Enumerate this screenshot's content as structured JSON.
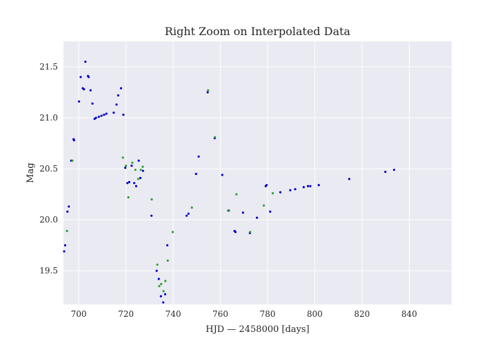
{
  "chart_data": {
    "type": "scatter",
    "title": "Right Zoom on Interpolated Data",
    "xlabel": "HJD — 2458000 [days]",
    "ylabel": "Mag",
    "xlim": [
      693.5,
      858
    ],
    "ylim": [
      19.17,
      21.75
    ],
    "y_inverted": false,
    "grid": true,
    "background": "#eaeaf2",
    "xticks": [
      700,
      720,
      740,
      760,
      780,
      800,
      820,
      840
    ],
    "yticks": [
      19.5,
      20.0,
      20.5,
      21.0,
      21.5
    ],
    "xtick_labels": [
      "700",
      "720",
      "740",
      "760",
      "780",
      "800",
      "820",
      "840"
    ],
    "ytick_labels": [
      "19.5",
      "20.0",
      "20.5",
      "21.0",
      "21.5"
    ],
    "series": [
      {
        "color": "#0000cc",
        "points": [
          [
            693.8,
            19.69
          ],
          [
            694.2,
            19.75
          ],
          [
            695.2,
            20.08
          ],
          [
            695.8,
            20.13
          ],
          [
            696.8,
            20.58
          ],
          [
            697.8,
            20.79
          ],
          [
            698.0,
            20.78
          ],
          [
            700.1,
            21.16
          ],
          [
            700.8,
            21.4
          ],
          [
            701.7,
            21.29
          ],
          [
            702.2,
            21.28
          ],
          [
            702.8,
            21.55
          ],
          [
            703.9,
            21.41
          ],
          [
            704.2,
            21.4
          ],
          [
            705.0,
            21.27
          ],
          [
            705.8,
            21.14
          ],
          [
            706.7,
            20.99
          ],
          [
            707.3,
            21.0
          ],
          [
            708.5,
            21.01
          ],
          [
            709.6,
            21.02
          ],
          [
            710.7,
            21.03
          ],
          [
            711.7,
            21.04
          ],
          [
            714.8,
            21.05
          ],
          [
            716.0,
            21.13
          ],
          [
            716.7,
            21.22
          ],
          [
            717.9,
            21.29
          ],
          [
            718.9,
            21.03
          ],
          [
            719.7,
            20.51
          ],
          [
            720.6,
            20.36
          ],
          [
            721.4,
            20.37
          ],
          [
            722.4,
            20.53
          ],
          [
            723.5,
            20.36
          ],
          [
            724.3,
            20.33
          ],
          [
            725.4,
            20.58
          ],
          [
            726.1,
            20.41
          ],
          [
            727.2,
            20.48
          ],
          [
            730.8,
            20.04
          ],
          [
            733.0,
            19.5
          ],
          [
            733.9,
            19.42
          ],
          [
            734.8,
            19.25
          ],
          [
            735.8,
            19.19
          ],
          [
            736.6,
            19.27
          ],
          [
            737.5,
            19.75
          ],
          [
            745.7,
            20.04
          ],
          [
            746.5,
            20.06
          ],
          [
            749.7,
            20.45
          ],
          [
            750.8,
            20.62
          ],
          [
            754.6,
            21.25
          ],
          [
            757.6,
            20.8
          ],
          [
            760.8,
            20.44
          ],
          [
            763.4,
            20.09
          ],
          [
            766.0,
            19.89
          ],
          [
            766.4,
            19.88
          ],
          [
            769.6,
            20.07
          ],
          [
            772.5,
            19.87
          ],
          [
            775.5,
            20.02
          ],
          [
            779.2,
            20.33
          ],
          [
            779.6,
            20.34
          ],
          [
            781.1,
            20.08
          ],
          [
            785.4,
            20.27
          ],
          [
            789.6,
            20.29
          ],
          [
            791.7,
            20.3
          ],
          [
            795.3,
            20.32
          ],
          [
            797.1,
            20.33
          ],
          [
            798.1,
            20.33
          ],
          [
            801.7,
            20.34
          ],
          [
            814.6,
            20.4
          ],
          [
            829.9,
            20.47
          ],
          [
            833.6,
            20.49
          ]
        ]
      },
      {
        "color": "#2ca02c",
        "points": [
          [
            695.0,
            19.89
          ],
          [
            697.3,
            20.58
          ],
          [
            718.7,
            20.61
          ],
          [
            720.0,
            20.53
          ],
          [
            721.0,
            20.22
          ],
          [
            722.7,
            20.56
          ],
          [
            724.0,
            20.49
          ],
          [
            725.2,
            20.4
          ],
          [
            726.3,
            20.49
          ],
          [
            727.1,
            20.52
          ],
          [
            730.9,
            20.2
          ],
          [
            733.3,
            19.56
          ],
          [
            734.1,
            19.35
          ],
          [
            734.9,
            19.37
          ],
          [
            735.9,
            19.3
          ],
          [
            736.7,
            19.4
          ],
          [
            737.7,
            19.6
          ],
          [
            739.8,
            19.88
          ],
          [
            747.9,
            20.12
          ],
          [
            754.8,
            21.27
          ],
          [
            757.7,
            20.81
          ],
          [
            763.7,
            20.09
          ],
          [
            766.8,
            20.25
          ],
          [
            772.6,
            19.88
          ],
          [
            778.4,
            20.14
          ],
          [
            782.2,
            20.26
          ]
        ]
      }
    ]
  }
}
